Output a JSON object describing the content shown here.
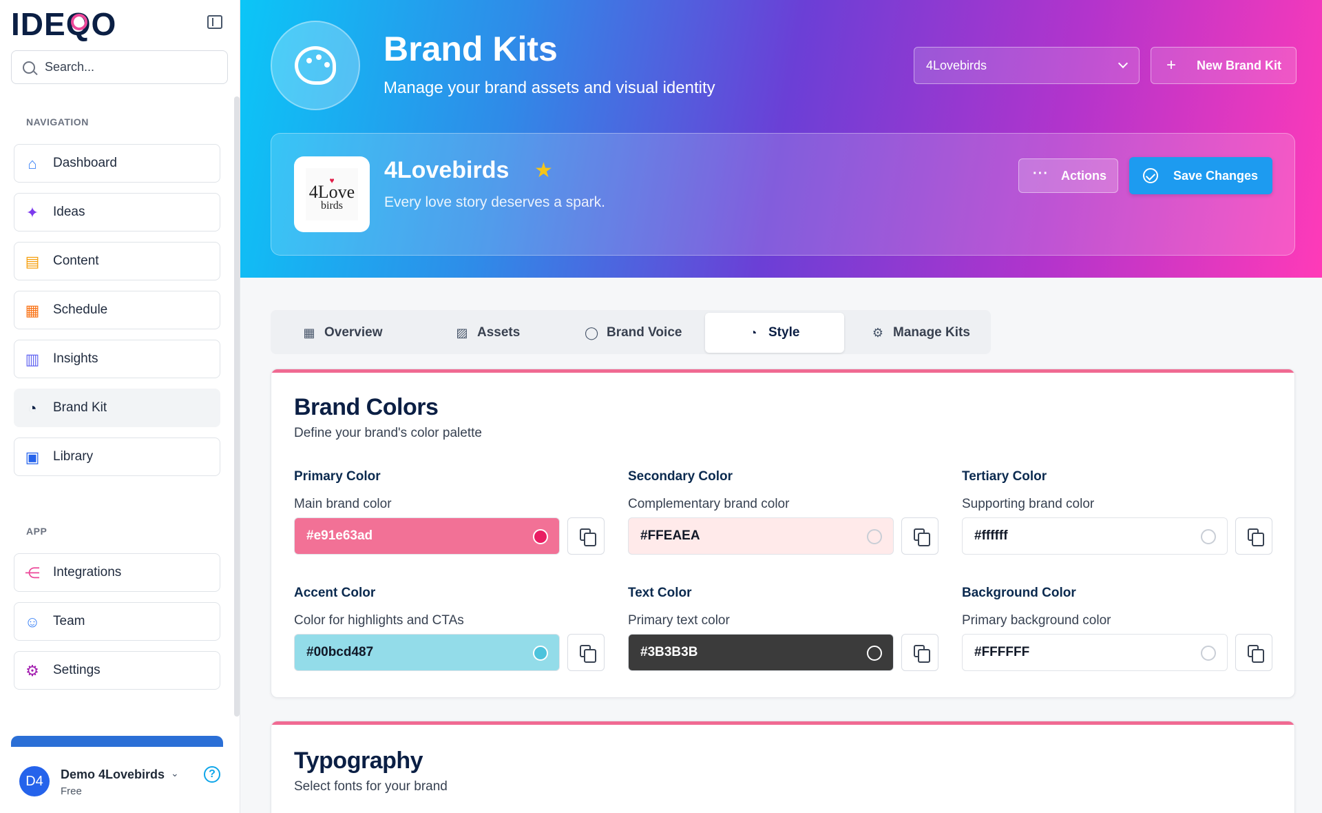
{
  "sidebar": {
    "logo": "IDEQO",
    "search_placeholder": "Search...",
    "nav_label": "NAVIGATION",
    "nav_items": [
      {
        "label": "Dashboard",
        "icon": "home-icon",
        "color": "#3b82f6"
      },
      {
        "label": "Ideas",
        "icon": "sparkles-icon",
        "color": "#7c3aed"
      },
      {
        "label": "Content",
        "icon": "file-text-icon",
        "color": "#f59e0b"
      },
      {
        "label": "Schedule",
        "icon": "calendar-icon",
        "color": "#f97316"
      },
      {
        "label": "Insights",
        "icon": "bar-chart-icon",
        "color": "#6366f1"
      },
      {
        "label": "Brand Kit",
        "icon": "palette-icon",
        "color": "#0b1f44"
      },
      {
        "label": "Library",
        "icon": "images-icon",
        "color": "#2563eb"
      }
    ],
    "app_label": "APP",
    "app_items": [
      {
        "label": "Integrations",
        "icon": "share-icon",
        "color": "#ec4899"
      },
      {
        "label": "Team",
        "icon": "users-icon",
        "color": "#3b82f6"
      },
      {
        "label": "Settings",
        "icon": "gear-icon",
        "color": "#a21caf"
      }
    ],
    "user": {
      "initials": "D4",
      "name": "Demo 4Lovebirds",
      "plan": "Free"
    }
  },
  "header": {
    "title": "Brand Kits",
    "subtitle": "Manage your brand assets and visual identity",
    "kit_select_value": "4Lovebirds",
    "new_kit_label": "New Brand Kit"
  },
  "kit": {
    "name": "4Lovebirds",
    "tagline": "Every love story deserves a spark.",
    "logo_line1": "4Love",
    "logo_line2": "birds",
    "actions_label": "Actions",
    "save_label": "Save Changes"
  },
  "tabs": [
    {
      "label": "Overview",
      "icon": "building-icon"
    },
    {
      "label": "Assets",
      "icon": "image-icon"
    },
    {
      "label": "Brand Voice",
      "icon": "message-circle-icon"
    },
    {
      "label": "Style",
      "icon": "palette-icon",
      "active": true
    },
    {
      "label": "Manage Kits",
      "icon": "gear-icon"
    }
  ],
  "brand_colors": {
    "title": "Brand Colors",
    "subtitle": "Define your brand's color palette",
    "fields": [
      {
        "label": "Primary Color",
        "desc": "Main brand color",
        "value": "#e91e63ad",
        "bg": "#f27196",
        "fg": "#ffffff",
        "dot": "#e91e63"
      },
      {
        "label": "Secondary Color",
        "desc": "Complementary brand color",
        "value": "#FFEAEA",
        "bg": "#ffeaea",
        "fg": "#111827",
        "dot": "#ffeaea"
      },
      {
        "label": "Tertiary Color",
        "desc": "Supporting brand color",
        "value": "#ffffff",
        "bg": "#ffffff",
        "fg": "#111827",
        "dot": "#ffffff"
      },
      {
        "label": "Accent Color",
        "desc": "Color for highlights and CTAs",
        "value": "#00bcd487",
        "bg": "#93dce9",
        "fg": "#111827",
        "dot": "#4cc3dc"
      },
      {
        "label": "Text Color",
        "desc": "Primary text color",
        "value": "#3B3B3B",
        "bg": "#3b3b3b",
        "fg": "#ffffff",
        "dot": "#3b3b3b"
      },
      {
        "label": "Background Color",
        "desc": "Primary background color",
        "value": "#FFFFFF",
        "bg": "#ffffff",
        "fg": "#111827",
        "dot": "#ffffff"
      }
    ]
  },
  "typography": {
    "title": "Typography",
    "subtitle": "Select fonts for your brand"
  }
}
